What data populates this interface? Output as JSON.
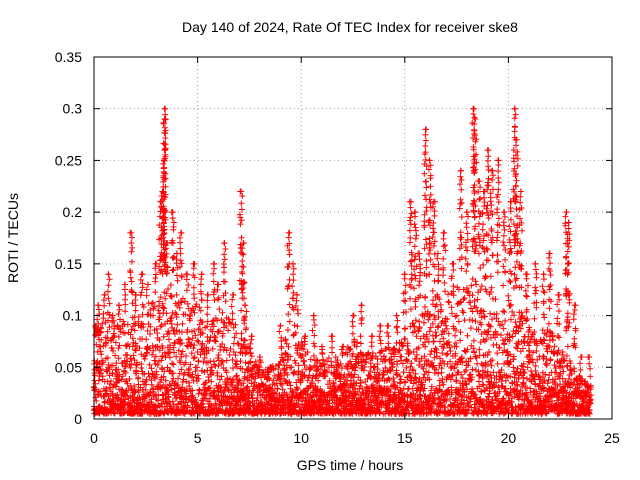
{
  "chart_data": {
    "type": "scatter",
    "title": "Day 140 of 2024, Rate Of TEC Index for receiver ske8",
    "xlabel": "GPS time / hours",
    "ylabel": "ROTI / TECUs",
    "xlim": [
      0,
      25
    ],
    "ylim": [
      0,
      0.35
    ],
    "x_ticks": [
      0,
      5,
      10,
      15,
      20,
      25
    ],
    "x_tick_labels": [
      "0",
      "5",
      "10",
      "15",
      "20",
      "25"
    ],
    "y_ticks": [
      0,
      0.05,
      0.1,
      0.15,
      0.2,
      0.25,
      0.3,
      0.35
    ],
    "y_tick_labels": [
      "0",
      "0.05",
      "0.1",
      "0.15",
      "0.2",
      "0.25",
      "0.3",
      "0.35"
    ],
    "grid": true,
    "marker": "plus",
    "series_color": "#ff0000",
    "series": [
      {
        "name": "ROTI",
        "points": [
          [
            0.1,
            0.09
          ],
          [
            0.2,
            0.11
          ],
          [
            0.3,
            0.07
          ],
          [
            0.5,
            0.12
          ],
          [
            0.7,
            0.14
          ],
          [
            0.9,
            0.1
          ],
          [
            1.2,
            0.11
          ],
          [
            1.5,
            0.13
          ],
          [
            1.8,
            0.18
          ],
          [
            2.0,
            0.12
          ],
          [
            2.3,
            0.14
          ],
          [
            2.6,
            0.13
          ],
          [
            3.0,
            0.15
          ],
          [
            3.2,
            0.21
          ],
          [
            3.3,
            0.22
          ],
          [
            3.4,
            0.29
          ],
          [
            3.4,
            0.3
          ],
          [
            3.4,
            0.26
          ],
          [
            3.5,
            0.17
          ],
          [
            3.8,
            0.2
          ],
          [
            4.0,
            0.16
          ],
          [
            4.2,
            0.18
          ],
          [
            4.5,
            0.14
          ],
          [
            4.8,
            0.15
          ],
          [
            5.2,
            0.14
          ],
          [
            5.5,
            0.12
          ],
          [
            5.8,
            0.15
          ],
          [
            6.0,
            0.13
          ],
          [
            6.3,
            0.17
          ],
          [
            6.7,
            0.12
          ],
          [
            7.1,
            0.22
          ],
          [
            7.2,
            0.17
          ],
          [
            7.3,
            0.11
          ],
          [
            7.6,
            0.08
          ],
          [
            8.0,
            0.06
          ],
          [
            8.5,
            0.05
          ],
          [
            9.0,
            0.09
          ],
          [
            9.4,
            0.18
          ],
          [
            9.6,
            0.15
          ],
          [
            9.8,
            0.12
          ],
          [
            10.2,
            0.08
          ],
          [
            10.6,
            0.1
          ],
          [
            11.0,
            0.07
          ],
          [
            11.5,
            0.08
          ],
          [
            12.0,
            0.07
          ],
          [
            12.5,
            0.1
          ],
          [
            12.9,
            0.11
          ],
          [
            13.4,
            0.08
          ],
          [
            13.8,
            0.09
          ],
          [
            14.2,
            0.09
          ],
          [
            14.6,
            0.1
          ],
          [
            15.0,
            0.14
          ],
          [
            15.3,
            0.21
          ],
          [
            15.5,
            0.2
          ],
          [
            15.7,
            0.16
          ],
          [
            16.0,
            0.28
          ],
          [
            16.2,
            0.25
          ],
          [
            16.4,
            0.21
          ],
          [
            16.6,
            0.16
          ],
          [
            16.9,
            0.18
          ],
          [
            17.3,
            0.15
          ],
          [
            17.7,
            0.24
          ],
          [
            18.0,
            0.2
          ],
          [
            18.3,
            0.3
          ],
          [
            18.4,
            0.29
          ],
          [
            18.6,
            0.23
          ],
          [
            18.8,
            0.22
          ],
          [
            19.0,
            0.26
          ],
          [
            19.2,
            0.24
          ],
          [
            19.5,
            0.25
          ],
          [
            19.8,
            0.2
          ],
          [
            20.1,
            0.21
          ],
          [
            20.3,
            0.3
          ],
          [
            20.4,
            0.27
          ],
          [
            20.6,
            0.22
          ],
          [
            20.9,
            0.14
          ],
          [
            21.3,
            0.15
          ],
          [
            21.7,
            0.14
          ],
          [
            22.0,
            0.16
          ],
          [
            22.4,
            0.12
          ],
          [
            22.8,
            0.2
          ],
          [
            22.9,
            0.19
          ],
          [
            23.2,
            0.11
          ],
          [
            23.5,
            0.06
          ],
          [
            23.9,
            0.06
          ]
        ],
        "envelope": [
          [
            0.0,
            0.08
          ],
          [
            0.5,
            0.1
          ],
          [
            1.0,
            0.09
          ],
          [
            1.5,
            0.1
          ],
          [
            2.0,
            0.1
          ],
          [
            2.5,
            0.11
          ],
          [
            3.0,
            0.12
          ],
          [
            3.5,
            0.13
          ],
          [
            4.0,
            0.13
          ],
          [
            4.5,
            0.12
          ],
          [
            5.0,
            0.11
          ],
          [
            5.5,
            0.1
          ],
          [
            6.0,
            0.11
          ],
          [
            6.5,
            0.1
          ],
          [
            7.0,
            0.09
          ],
          [
            7.5,
            0.07
          ],
          [
            8.0,
            0.05
          ],
          [
            8.5,
            0.05
          ],
          [
            9.0,
            0.06
          ],
          [
            9.5,
            0.1
          ],
          [
            10.0,
            0.08
          ],
          [
            10.5,
            0.06
          ],
          [
            11.0,
            0.06
          ],
          [
            11.5,
            0.06
          ],
          [
            12.0,
            0.06
          ],
          [
            12.5,
            0.08
          ],
          [
            13.0,
            0.07
          ],
          [
            13.5,
            0.06
          ],
          [
            14.0,
            0.07
          ],
          [
            14.5,
            0.07
          ],
          [
            15.0,
            0.08
          ],
          [
            15.5,
            0.1
          ],
          [
            16.0,
            0.12
          ],
          [
            16.5,
            0.12
          ],
          [
            17.0,
            0.12
          ],
          [
            17.5,
            0.13
          ],
          [
            18.0,
            0.13
          ],
          [
            18.5,
            0.14
          ],
          [
            19.0,
            0.14
          ],
          [
            19.5,
            0.13
          ],
          [
            20.0,
            0.12
          ],
          [
            20.5,
            0.11
          ],
          [
            21.0,
            0.09
          ],
          [
            21.5,
            0.08
          ],
          [
            22.0,
            0.09
          ],
          [
            22.5,
            0.07
          ],
          [
            23.0,
            0.06
          ],
          [
            23.5,
            0.04
          ],
          [
            24.0,
            0.04
          ]
        ],
        "baseline": [
          0.005,
          0.03
        ]
      }
    ]
  }
}
